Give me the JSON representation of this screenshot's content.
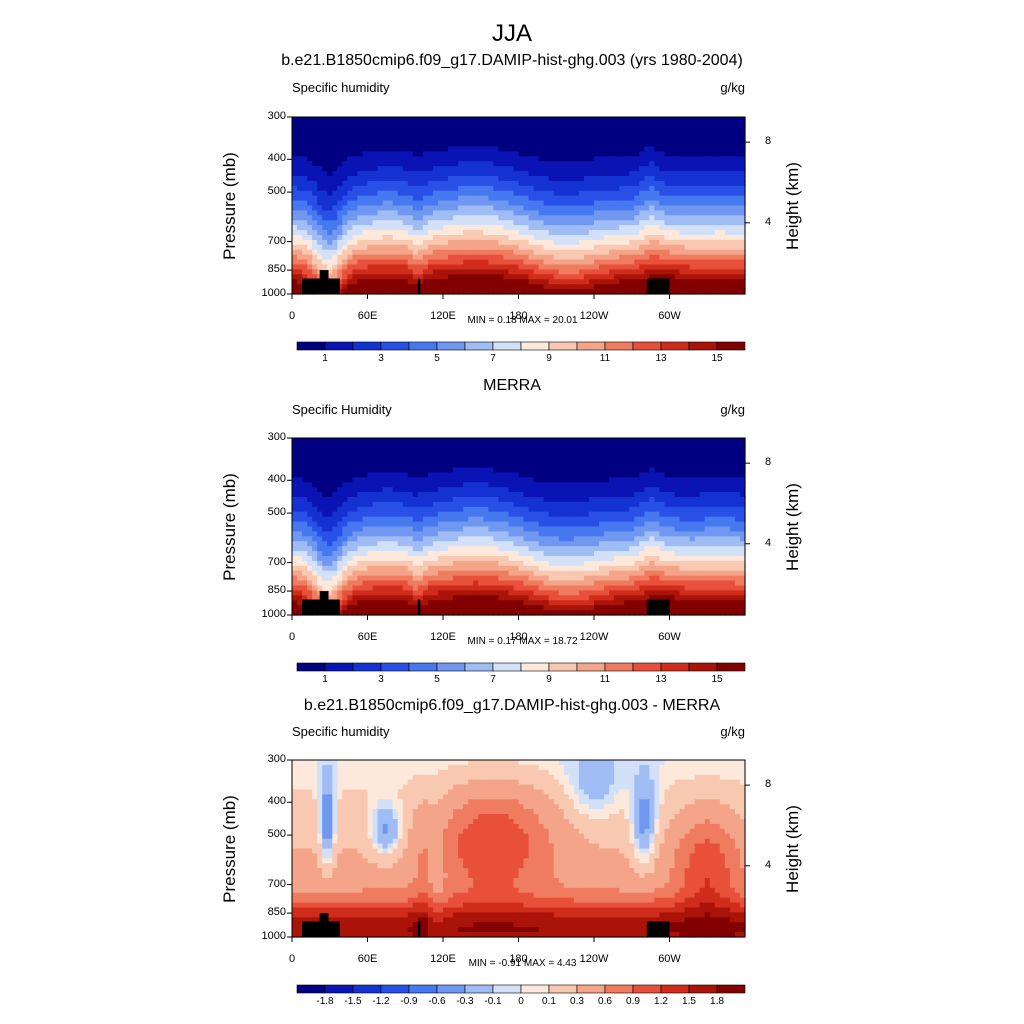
{
  "title": "JJA",
  "panels": [
    {
      "title": "b.e21.B1850cmip6.f09_g17.DAMIP-hist-ghg.003 (yrs 1980-2004)",
      "left_label": "Specific humidity",
      "right_label": "g/kg",
      "minmax": "MIN =   0.18  MAX =  20.01"
    },
    {
      "title": "MERRA",
      "left_label": "Specific Humidity",
      "right_label": "g/kg",
      "minmax": "MIN =   0.17  MAX =  18.72"
    },
    {
      "title": "b.e21.B1850cmip6.f09_g17.DAMIP-hist-ghg.003 - MERRA",
      "left_label": "Specific humidity",
      "right_label": "g/kg",
      "minmax": "MIN =  -0.91  MAX =   4.43"
    }
  ],
  "chart_data": [
    {
      "type": "heatmap",
      "ylabel": "Pressure (mb)",
      "y2label": "Height (km)",
      "x_ticks": [
        "0",
        "60E",
        "120E",
        "180",
        "120W",
        "60W"
      ],
      "x_tick_values": [
        0,
        60,
        120,
        180,
        240,
        300
      ],
      "xlim": [
        0,
        360
      ],
      "y_ticks": [
        "300",
        "400",
        "500",
        "700",
        "850",
        "1000"
      ],
      "y_tick_values": [
        300,
        400,
        500,
        700,
        850,
        1000
      ],
      "ylim": [
        1000,
        300
      ],
      "y_log": true,
      "y2_ticks": [
        "8",
        "4"
      ],
      "colorbar_ticks": [
        "1",
        "3",
        "5",
        "7",
        "9",
        "11",
        "13",
        "15"
      ],
      "colorbar_levels": [
        0,
        1,
        2,
        3,
        4,
        5,
        6,
        7,
        8,
        9,
        10,
        11,
        12,
        13,
        14,
        15,
        16
      ],
      "min": 0.18,
      "max": 20.01
    },
    {
      "type": "heatmap",
      "ylabel": "Pressure (mb)",
      "y2label": "Height (km)",
      "x_ticks": [
        "0",
        "60E",
        "120E",
        "180",
        "120W",
        "60W"
      ],
      "x_tick_values": [
        0,
        60,
        120,
        180,
        240,
        300
      ],
      "xlim": [
        0,
        360
      ],
      "y_ticks": [
        "300",
        "400",
        "500",
        "700",
        "850",
        "1000"
      ],
      "y_tick_values": [
        300,
        400,
        500,
        700,
        850,
        1000
      ],
      "ylim": [
        1000,
        300
      ],
      "y_log": true,
      "y2_ticks": [
        "8",
        "4"
      ],
      "colorbar_ticks": [
        "1",
        "3",
        "5",
        "7",
        "9",
        "11",
        "13",
        "15"
      ],
      "colorbar_levels": [
        0,
        1,
        2,
        3,
        4,
        5,
        6,
        7,
        8,
        9,
        10,
        11,
        12,
        13,
        14,
        15,
        16
      ],
      "min": 0.17,
      "max": 18.72
    },
    {
      "type": "heatmap",
      "ylabel": "Pressure (mb)",
      "y2label": "Height (km)",
      "x_ticks": [
        "0",
        "60E",
        "120E",
        "180",
        "120W",
        "60W"
      ],
      "x_tick_values": [
        0,
        60,
        120,
        180,
        240,
        300
      ],
      "xlim": [
        0,
        360
      ],
      "y_ticks": [
        "300",
        "400",
        "500",
        "700",
        "850",
        "1000"
      ],
      "y_tick_values": [
        300,
        400,
        500,
        700,
        850,
        1000
      ],
      "ylim": [
        1000,
        300
      ],
      "y_log": true,
      "y2_ticks": [
        "8",
        "4"
      ],
      "colorbar_ticks": [
        "-1.8",
        "-1.5",
        "-1.2",
        "-0.9",
        "-0.6",
        "-0.3",
        "-0.1",
        "0",
        "0.1",
        "0.3",
        "0.6",
        "0.9",
        "1.2",
        "1.5",
        "1.8"
      ],
      "colorbar_levels": [
        -2.1,
        -1.8,
        -1.5,
        -1.2,
        -0.9,
        -0.6,
        -0.3,
        -0.1,
        0,
        0.1,
        0.3,
        0.6,
        0.9,
        1.2,
        1.5,
        1.8,
        2.1
      ],
      "min": -0.91,
      "max": 4.43
    }
  ],
  "colors": {
    "palette": [
      "#000080",
      "#0a14b4",
      "#1432d2",
      "#2850e6",
      "#4678f0",
      "#7098f0",
      "#a0bcf5",
      "#d2e0f8",
      "#fde9dc",
      "#f8c8b0",
      "#f4a488",
      "#f07c60",
      "#e8503c",
      "#d02c1c",
      "#aa1408",
      "#820000"
    ]
  }
}
